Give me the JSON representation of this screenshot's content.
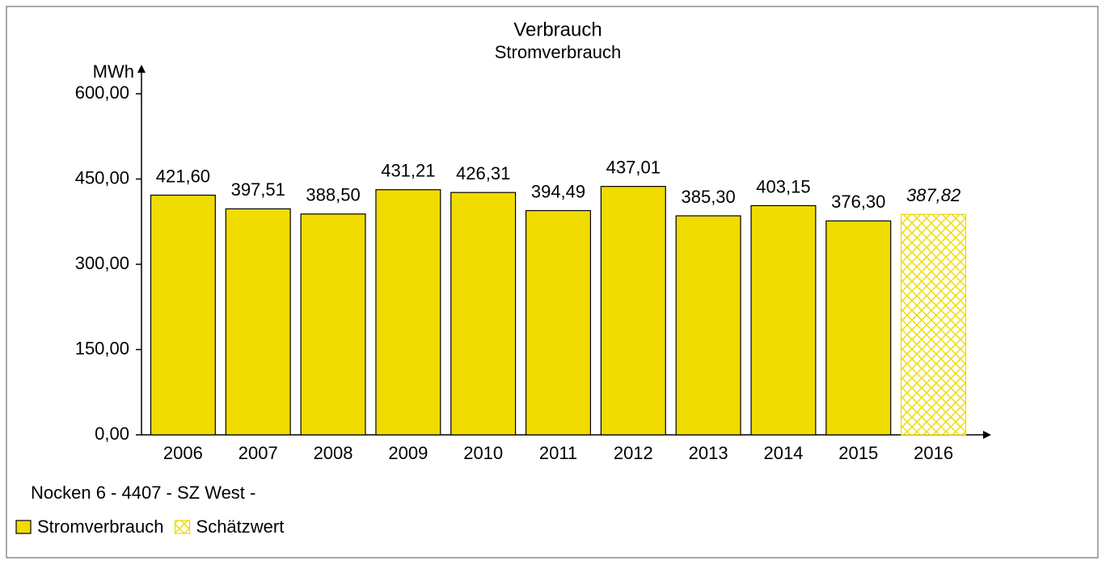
{
  "chart_data": {
    "type": "bar",
    "title": "Verbrauch",
    "subtitle": "Stromverbrauch",
    "y_label": "MWh",
    "legend_title": "Nocken 6 - 4407 - SZ West -",
    "categories": [
      "2006",
      "2007",
      "2008",
      "2009",
      "2010",
      "2011",
      "2012",
      "2013",
      "2014",
      "2015",
      "2016"
    ],
    "series": [
      {
        "name": "Stromverbrauch",
        "color": "#f0dc00",
        "pattern": "solid",
        "values": [
          421.6,
          397.51,
          388.5,
          431.21,
          426.31,
          394.49,
          437.01,
          385.3,
          403.15,
          376.3,
          null
        ],
        "value_labels": [
          "421,60",
          "397,51",
          "388,50",
          "431,21",
          "426,31",
          "394,49",
          "437,01",
          "385,30",
          "403,15",
          "376,30",
          null
        ]
      },
      {
        "name": "Schätzwert",
        "color": "#f0dc00",
        "pattern": "crosshatch",
        "values": [
          null,
          null,
          null,
          null,
          null,
          null,
          null,
          null,
          null,
          null,
          387.82
        ],
        "value_labels": [
          null,
          null,
          null,
          null,
          null,
          null,
          null,
          null,
          null,
          null,
          "387,82"
        ]
      }
    ],
    "ylim": [
      0,
      600
    ],
    "yticks": [
      {
        "value": 0,
        "label": "0,00"
      },
      {
        "value": 150,
        "label": "150,00"
      },
      {
        "value": 300,
        "label": "300,00"
      },
      {
        "value": 450,
        "label": "450,00"
      },
      {
        "value": 600,
        "label": "600,00"
      }
    ],
    "grid": false
  }
}
